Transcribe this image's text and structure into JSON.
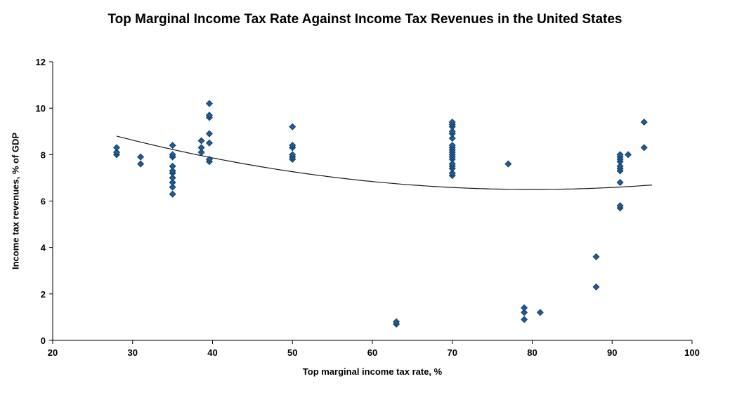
{
  "chart_data": {
    "type": "scatter",
    "title": "Top Marginal Income Tax Rate Against Income Tax Revenues in the United States",
    "xlabel": "Top marginal income tax rate, %",
    "ylabel": "Income tax revenues, % of GDP",
    "xlim": [
      20,
      100
    ],
    "ylim": [
      0,
      12
    ],
    "xticks": [
      20,
      30,
      40,
      50,
      60,
      70,
      80,
      90,
      100
    ],
    "yticks": [
      0,
      2,
      4,
      6,
      8,
      10,
      12
    ],
    "grid": false,
    "legend": false,
    "marker": "diamond",
    "marker_color": "#1F5C99",
    "marker_stroke": "#153E66",
    "axis_color": "#000000",
    "trendline": {
      "shape": "quadratic",
      "a": 0.00085,
      "h": 80,
      "k": 6.5,
      "x_start": 28,
      "x_end": 95,
      "color": "#1a1a1a"
    },
    "points": [
      [
        28,
        8.0
      ],
      [
        28,
        8.1
      ],
      [
        28,
        8.3
      ],
      [
        31,
        7.6
      ],
      [
        31,
        7.9
      ],
      [
        35,
        6.3
      ],
      [
        35,
        6.6
      ],
      [
        35,
        6.8
      ],
      [
        35,
        7.0
      ],
      [
        35,
        7.2
      ],
      [
        35,
        7.3
      ],
      [
        35,
        7.5
      ],
      [
        35,
        7.9
      ],
      [
        35,
        8.0
      ],
      [
        35,
        8.4
      ],
      [
        38.6,
        8.1
      ],
      [
        38.6,
        8.3
      ],
      [
        38.6,
        8.6
      ],
      [
        39.6,
        7.7
      ],
      [
        39.6,
        7.8
      ],
      [
        39.6,
        8.5
      ],
      [
        39.6,
        8.9
      ],
      [
        39.6,
        9.6
      ],
      [
        39.6,
        9.7
      ],
      [
        39.6,
        10.2
      ],
      [
        50,
        7.8
      ],
      [
        50,
        7.9
      ],
      [
        50,
        8.0
      ],
      [
        50,
        8.3
      ],
      [
        50,
        8.4
      ],
      [
        50,
        9.2
      ],
      [
        63,
        0.7
      ],
      [
        63,
        0.8
      ],
      [
        70,
        7.1
      ],
      [
        70,
        7.2
      ],
      [
        70,
        7.4
      ],
      [
        70,
        7.5
      ],
      [
        70,
        7.6
      ],
      [
        70,
        7.8
      ],
      [
        70,
        7.9
      ],
      [
        70,
        8.0
      ],
      [
        70,
        8.1
      ],
      [
        70,
        8.2
      ],
      [
        70,
        8.3
      ],
      [
        70,
        8.4
      ],
      [
        70,
        8.7
      ],
      [
        70,
        8.9
      ],
      [
        70,
        9.0
      ],
      [
        70,
        9.2
      ],
      [
        70,
        9.3
      ],
      [
        70,
        9.4
      ],
      [
        77,
        7.6
      ],
      [
        79,
        0.9
      ],
      [
        79,
        1.2
      ],
      [
        79,
        1.4
      ],
      [
        81,
        1.2
      ],
      [
        88,
        2.3
      ],
      [
        88,
        3.6
      ],
      [
        91,
        5.7
      ],
      [
        91,
        5.8
      ],
      [
        91,
        6.8
      ],
      [
        91,
        7.3
      ],
      [
        91,
        7.4
      ],
      [
        91,
        7.5
      ],
      [
        91,
        7.7
      ],
      [
        91,
        7.8
      ],
      [
        91,
        7.9
      ],
      [
        91,
        8.0
      ],
      [
        92,
        8.0
      ],
      [
        94,
        8.3
      ],
      [
        94,
        9.4
      ]
    ]
  }
}
